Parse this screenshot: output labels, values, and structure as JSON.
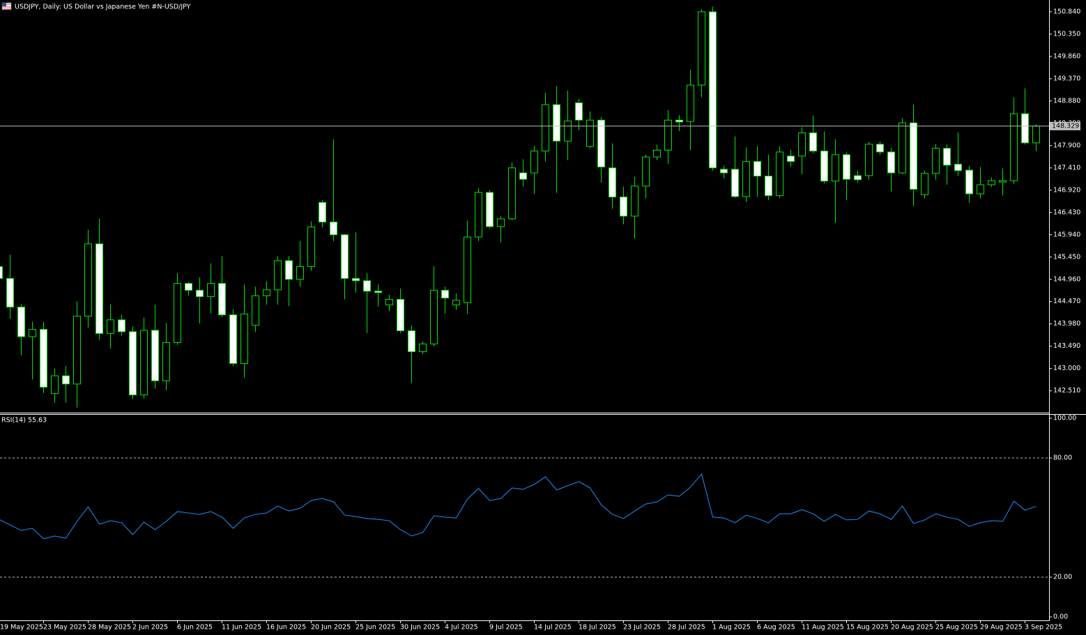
{
  "chart_data": [
    {
      "type": "candlestick",
      "title": "USDJPY, Daily:  US Dollar vs  Japanese Yen #N-USD/JPY",
      "categories": [
        "19 May 2025",
        null,
        null,
        null,
        "23 May 2025",
        null,
        null,
        null,
        "28 May 2025",
        null,
        null,
        null,
        "2 Jun 2025",
        null,
        null,
        null,
        "6 Jun 2025",
        null,
        null,
        null,
        "11 Jun 2025",
        null,
        null,
        null,
        "16 Jun 2025",
        null,
        null,
        null,
        "20 Jun 2025",
        null,
        null,
        null,
        "25 Jun 2025",
        null,
        null,
        null,
        "30 Jun 2025",
        null,
        null,
        null,
        "4 Jul 2025",
        null,
        null,
        null,
        "9 Jul 2025",
        null,
        null,
        null,
        "14 Jul 2025",
        null,
        null,
        null,
        "18 Jul 2025",
        null,
        null,
        null,
        "23 Jul 2025",
        null,
        null,
        null,
        "28 Jul 2025",
        null,
        null,
        null,
        "1 Aug 2025",
        null,
        null,
        null,
        "6 Aug 2025",
        null,
        null,
        null,
        "11 Aug 2025",
        null,
        null,
        null,
        "15 Aug 2025",
        null,
        null,
        null,
        "20 Aug 2025",
        null,
        null,
        null,
        "25 Aug 2025",
        null,
        null,
        null,
        "29 Aug 2025",
        null,
        null,
        null,
        "3 Sep 2025",
        null
      ],
      "open": [
        145.24,
        144.98,
        144.35,
        143.7,
        143.86,
        142.45,
        142.84,
        142.66,
        144.15,
        145.74,
        143.77,
        144.07,
        143.81,
        142.42,
        143.84,
        142.73,
        143.57,
        144.87,
        144.72,
        144.58,
        144.87,
        144.18,
        143.11,
        143.95,
        144.6,
        144.73,
        145.37,
        144.96,
        145.24,
        146.65,
        146.22,
        145.94,
        144.98,
        144.93,
        144.7,
        144.4,
        144.52,
        143.83,
        143.37,
        143.54,
        144.72,
        144.4,
        144.45,
        145.89,
        146.87,
        146.12,
        146.29,
        147.3,
        147.3,
        147.78,
        148.8,
        148.0,
        148.84,
        147.88,
        148.46,
        147.41,
        146.77,
        146.35,
        147.01,
        147.65,
        147.8,
        148.46,
        148.43,
        149.23,
        150.84,
        147.38,
        147.38,
        146.78,
        147.55,
        147.23,
        146.8,
        147.67,
        147.67,
        148.18,
        147.78,
        147.12,
        147.7,
        147.24,
        147.24,
        147.93,
        147.76,
        147.3,
        148.4,
        146.82,
        147.29,
        147.84,
        147.49,
        147.36,
        146.84,
        147.04,
        147.1,
        147.13,
        148.6,
        147.96
      ],
      "high": [
        145.4,
        145.5,
        144.42,
        144.03,
        144.03,
        143.0,
        143.05,
        144.48,
        146.05,
        146.29,
        144.41,
        144.18,
        143.92,
        144.12,
        144.4,
        144.0,
        145.1,
        144.9,
        145.0,
        145.31,
        145.47,
        144.3,
        144.85,
        144.8,
        144.92,
        145.47,
        145.47,
        145.8,
        146.23,
        146.7,
        148.04,
        145.96,
        145.99,
        145.1,
        144.85,
        144.62,
        144.76,
        143.95,
        143.6,
        145.25,
        144.8,
        144.65,
        146.25,
        146.96,
        146.92,
        146.35,
        147.53,
        147.6,
        147.9,
        149.06,
        149.2,
        149.11,
        148.93,
        148.65,
        148.53,
        147.95,
        147.0,
        147.21,
        147.7,
        147.92,
        148.68,
        148.57,
        149.57,
        150.9,
        150.95,
        147.46,
        148.1,
        147.86,
        147.88,
        147.7,
        147.88,
        147.81,
        148.3,
        148.56,
        148.21,
        148.04,
        147.75,
        147.35,
        147.98,
        147.99,
        147.85,
        148.5,
        148.8,
        147.35,
        147.93,
        147.92,
        148.19,
        147.45,
        147.43,
        147.2,
        147.4,
        148.96,
        149.16,
        148.37
      ],
      "low": [
        144.8,
        144.09,
        143.29,
        142.76,
        142.46,
        142.25,
        142.25,
        142.14,
        143.9,
        143.63,
        143.44,
        143.72,
        142.33,
        142.34,
        142.56,
        142.52,
        143.52,
        144.6,
        143.99,
        144.21,
        144.13,
        143.05,
        142.8,
        143.8,
        144.4,
        144.4,
        144.37,
        144.8,
        145.15,
        146.1,
        145.8,
        144.52,
        144.67,
        143.78,
        144.36,
        144.26,
        143.78,
        142.68,
        143.32,
        143.49,
        144.21,
        144.29,
        144.2,
        145.8,
        146.08,
        145.77,
        146.26,
        147.0,
        146.84,
        147.55,
        146.86,
        147.58,
        148.24,
        147.84,
        147.09,
        146.51,
        146.17,
        145.86,
        146.74,
        147.58,
        147.5,
        148.22,
        147.8,
        148.96,
        147.35,
        147.18,
        146.75,
        146.66,
        146.77,
        146.7,
        146.75,
        147.43,
        147.27,
        147.73,
        147.07,
        146.2,
        146.7,
        147.09,
        147.15,
        147.7,
        146.89,
        147.27,
        146.57,
        146.74,
        147.15,
        147.04,
        147.23,
        146.64,
        146.74,
        146.99,
        146.8,
        147.06,
        147.92,
        147.78
      ],
      "close": [
        144.98,
        144.35,
        143.7,
        143.86,
        142.59,
        142.84,
        142.66,
        144.15,
        145.74,
        143.77,
        144.07,
        143.81,
        142.42,
        143.84,
        142.73,
        143.57,
        144.87,
        144.72,
        144.58,
        144.87,
        144.18,
        143.11,
        144.2,
        144.6,
        144.73,
        145.37,
        144.96,
        145.24,
        146.11,
        146.22,
        145.94,
        144.98,
        144.93,
        144.7,
        144.67,
        144.52,
        143.83,
        143.37,
        143.54,
        144.72,
        144.55,
        144.5,
        145.89,
        146.87,
        146.12,
        146.29,
        147.41,
        147.16,
        147.78,
        148.8,
        148.0,
        148.44,
        148.46,
        148.46,
        147.43,
        146.77,
        146.35,
        147.01,
        147.65,
        147.8,
        148.46,
        148.42,
        149.23,
        150.84,
        147.41,
        147.3,
        146.78,
        147.55,
        147.23,
        146.8,
        147.76,
        147.55,
        148.18,
        147.78,
        147.12,
        147.7,
        147.16,
        147.15,
        147.93,
        147.76,
        147.3,
        148.4,
        146.94,
        147.29,
        147.84,
        147.47,
        147.35,
        146.84,
        147.04,
        147.13,
        147.13,
        148.6,
        147.96,
        148.33
      ],
      "up_color": "#000000",
      "down_color": "#ffffff",
      "line_color": "#00e600",
      "last_price": 148.329,
      "last_price_color": "#c0c0c0",
      "ylim": [
        142.03,
        151.1
      ],
      "yticks": [
        {
          "value": 150.84,
          "label": "150.840"
        },
        {
          "value": 150.35,
          "label": "150.350"
        },
        {
          "value": 149.86,
          "label": "149.860"
        },
        {
          "value": 149.37,
          "label": "149.370"
        },
        {
          "value": 148.88,
          "label": "148.880"
        },
        {
          "value": 148.39,
          "label": "148.390"
        },
        {
          "value": 147.9,
          "label": "147.900"
        },
        {
          "value": 147.41,
          "label": "147.410"
        },
        {
          "value": 146.92,
          "label": "146.920"
        },
        {
          "value": 146.43,
          "label": "146.430"
        },
        {
          "value": 145.94,
          "label": "145.940"
        },
        {
          "value": 145.45,
          "label": "145.450"
        },
        {
          "value": 144.96,
          "label": "144.960"
        },
        {
          "value": 144.47,
          "label": "144.470"
        },
        {
          "value": 143.98,
          "label": "143.980"
        },
        {
          "value": 143.49,
          "label": "143.490"
        },
        {
          "value": 143,
          "label": "143.000"
        },
        {
          "value": 142.51,
          "label": "142.510"
        }
      ]
    },
    {
      "type": "line",
      "title": "RSI(14) 55.63",
      "color": "#1e90ff",
      "values": [
        49.1,
        46.3,
        43.5,
        44.6,
        39.3,
        40.7,
        39.6,
        48.1,
        55.4,
        46.7,
        48.4,
        47.4,
        41.4,
        47.7,
        43.9,
        48.1,
        53.0,
        52.3,
        51.6,
        53.0,
        50.2,
        44.6,
        49.8,
        51.6,
        52.3,
        55.8,
        53.3,
        54.7,
        58.6,
        59.6,
        57.9,
        51.2,
        50.5,
        49.5,
        49.1,
        48.4,
        43.9,
        40.7,
        42.5,
        50.9,
        50.2,
        49.8,
        59.3,
        64.6,
        58.6,
        59.6,
        64.9,
        64.2,
        66.7,
        70.5,
        63.9,
        66.0,
        68.1,
        64.9,
        56.5,
        51.6,
        49.5,
        53.3,
        56.8,
        57.9,
        61.4,
        60.7,
        65.3,
        71.9,
        50.2,
        49.8,
        47.4,
        51.2,
        49.5,
        47.4,
        51.9,
        51.9,
        54.0,
        51.9,
        48.1,
        51.6,
        48.8,
        49.1,
        53.3,
        51.9,
        49.1,
        55.8,
        47.0,
        48.8,
        51.9,
        50.2,
        49.1,
        45.6,
        47.4,
        48.4,
        48.1,
        58.2,
        53.7,
        55.63
      ],
      "ylim": [
        0,
        100
      ],
      "yticks": [
        {
          "value": 100,
          "label": "100.00"
        },
        {
          "value": 80,
          "label": "80.00"
        },
        {
          "value": 20,
          "label": "20.00"
        },
        {
          "value": 0,
          "label": "0.00"
        }
      ],
      "levels": [
        80,
        20
      ]
    }
  ]
}
